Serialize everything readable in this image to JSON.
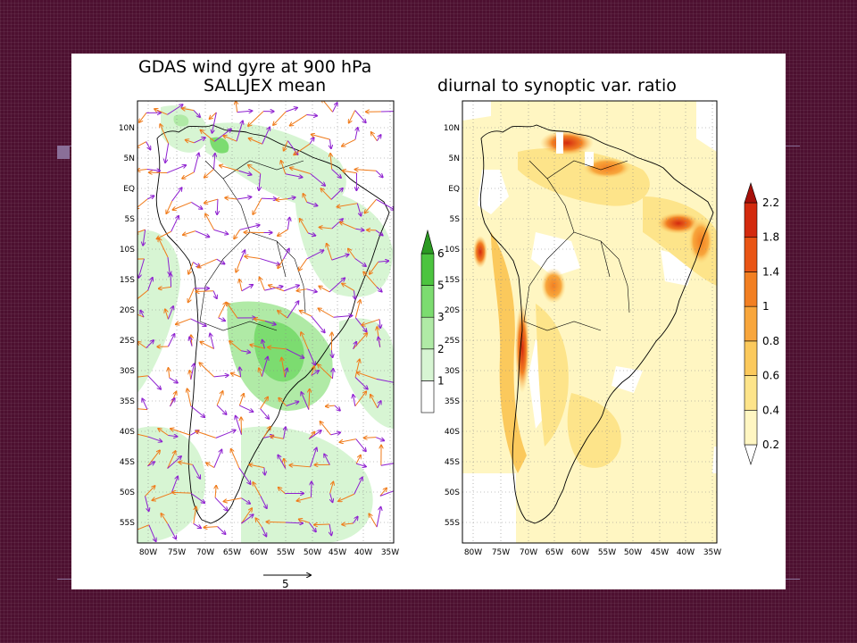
{
  "left_panel": {
    "title_line1": "GDAS wind gyre at 900 hPa",
    "title_line2": "SALLJEX mean",
    "colorbar_labels": [
      "1",
      "2",
      "3",
      "5",
      "6"
    ],
    "colorbar_colors": [
      "#ffffff",
      "#d7f5d3",
      "#b0eaa6",
      "#7cdc70",
      "#4cc43f",
      "#2b9a22"
    ],
    "reference_vector_label": "5"
  },
  "right_panel": {
    "title": "diurnal to synoptic var. ratio",
    "colorbar_labels": [
      "0.2",
      "0.4",
      "0.6",
      "0.8",
      "1",
      "1.4",
      "1.8",
      "2.2"
    ],
    "colorbar_colors": [
      "#ffffff",
      "#fff6c2",
      "#fde48a",
      "#fbc95c",
      "#f8a63c",
      "#f27f22",
      "#e95515",
      "#d32a0e",
      "#a6100a"
    ]
  },
  "axes": {
    "lat_labels": [
      "10N",
      "5N",
      "EQ",
      "5S",
      "10S",
      "15S",
      "20S",
      "25S",
      "30S",
      "35S",
      "40S",
      "45S",
      "50S",
      "55S"
    ],
    "lon_labels": [
      "80W",
      "75W",
      "70W",
      "65W",
      "60W",
      "55W",
      "50W",
      "45W",
      "40W",
      "35W"
    ]
  },
  "colors": {
    "background": "#4d1030",
    "slide": "#ffffff",
    "vector_orange": "#f07a18",
    "vector_purple": "#8e1fd0"
  }
}
